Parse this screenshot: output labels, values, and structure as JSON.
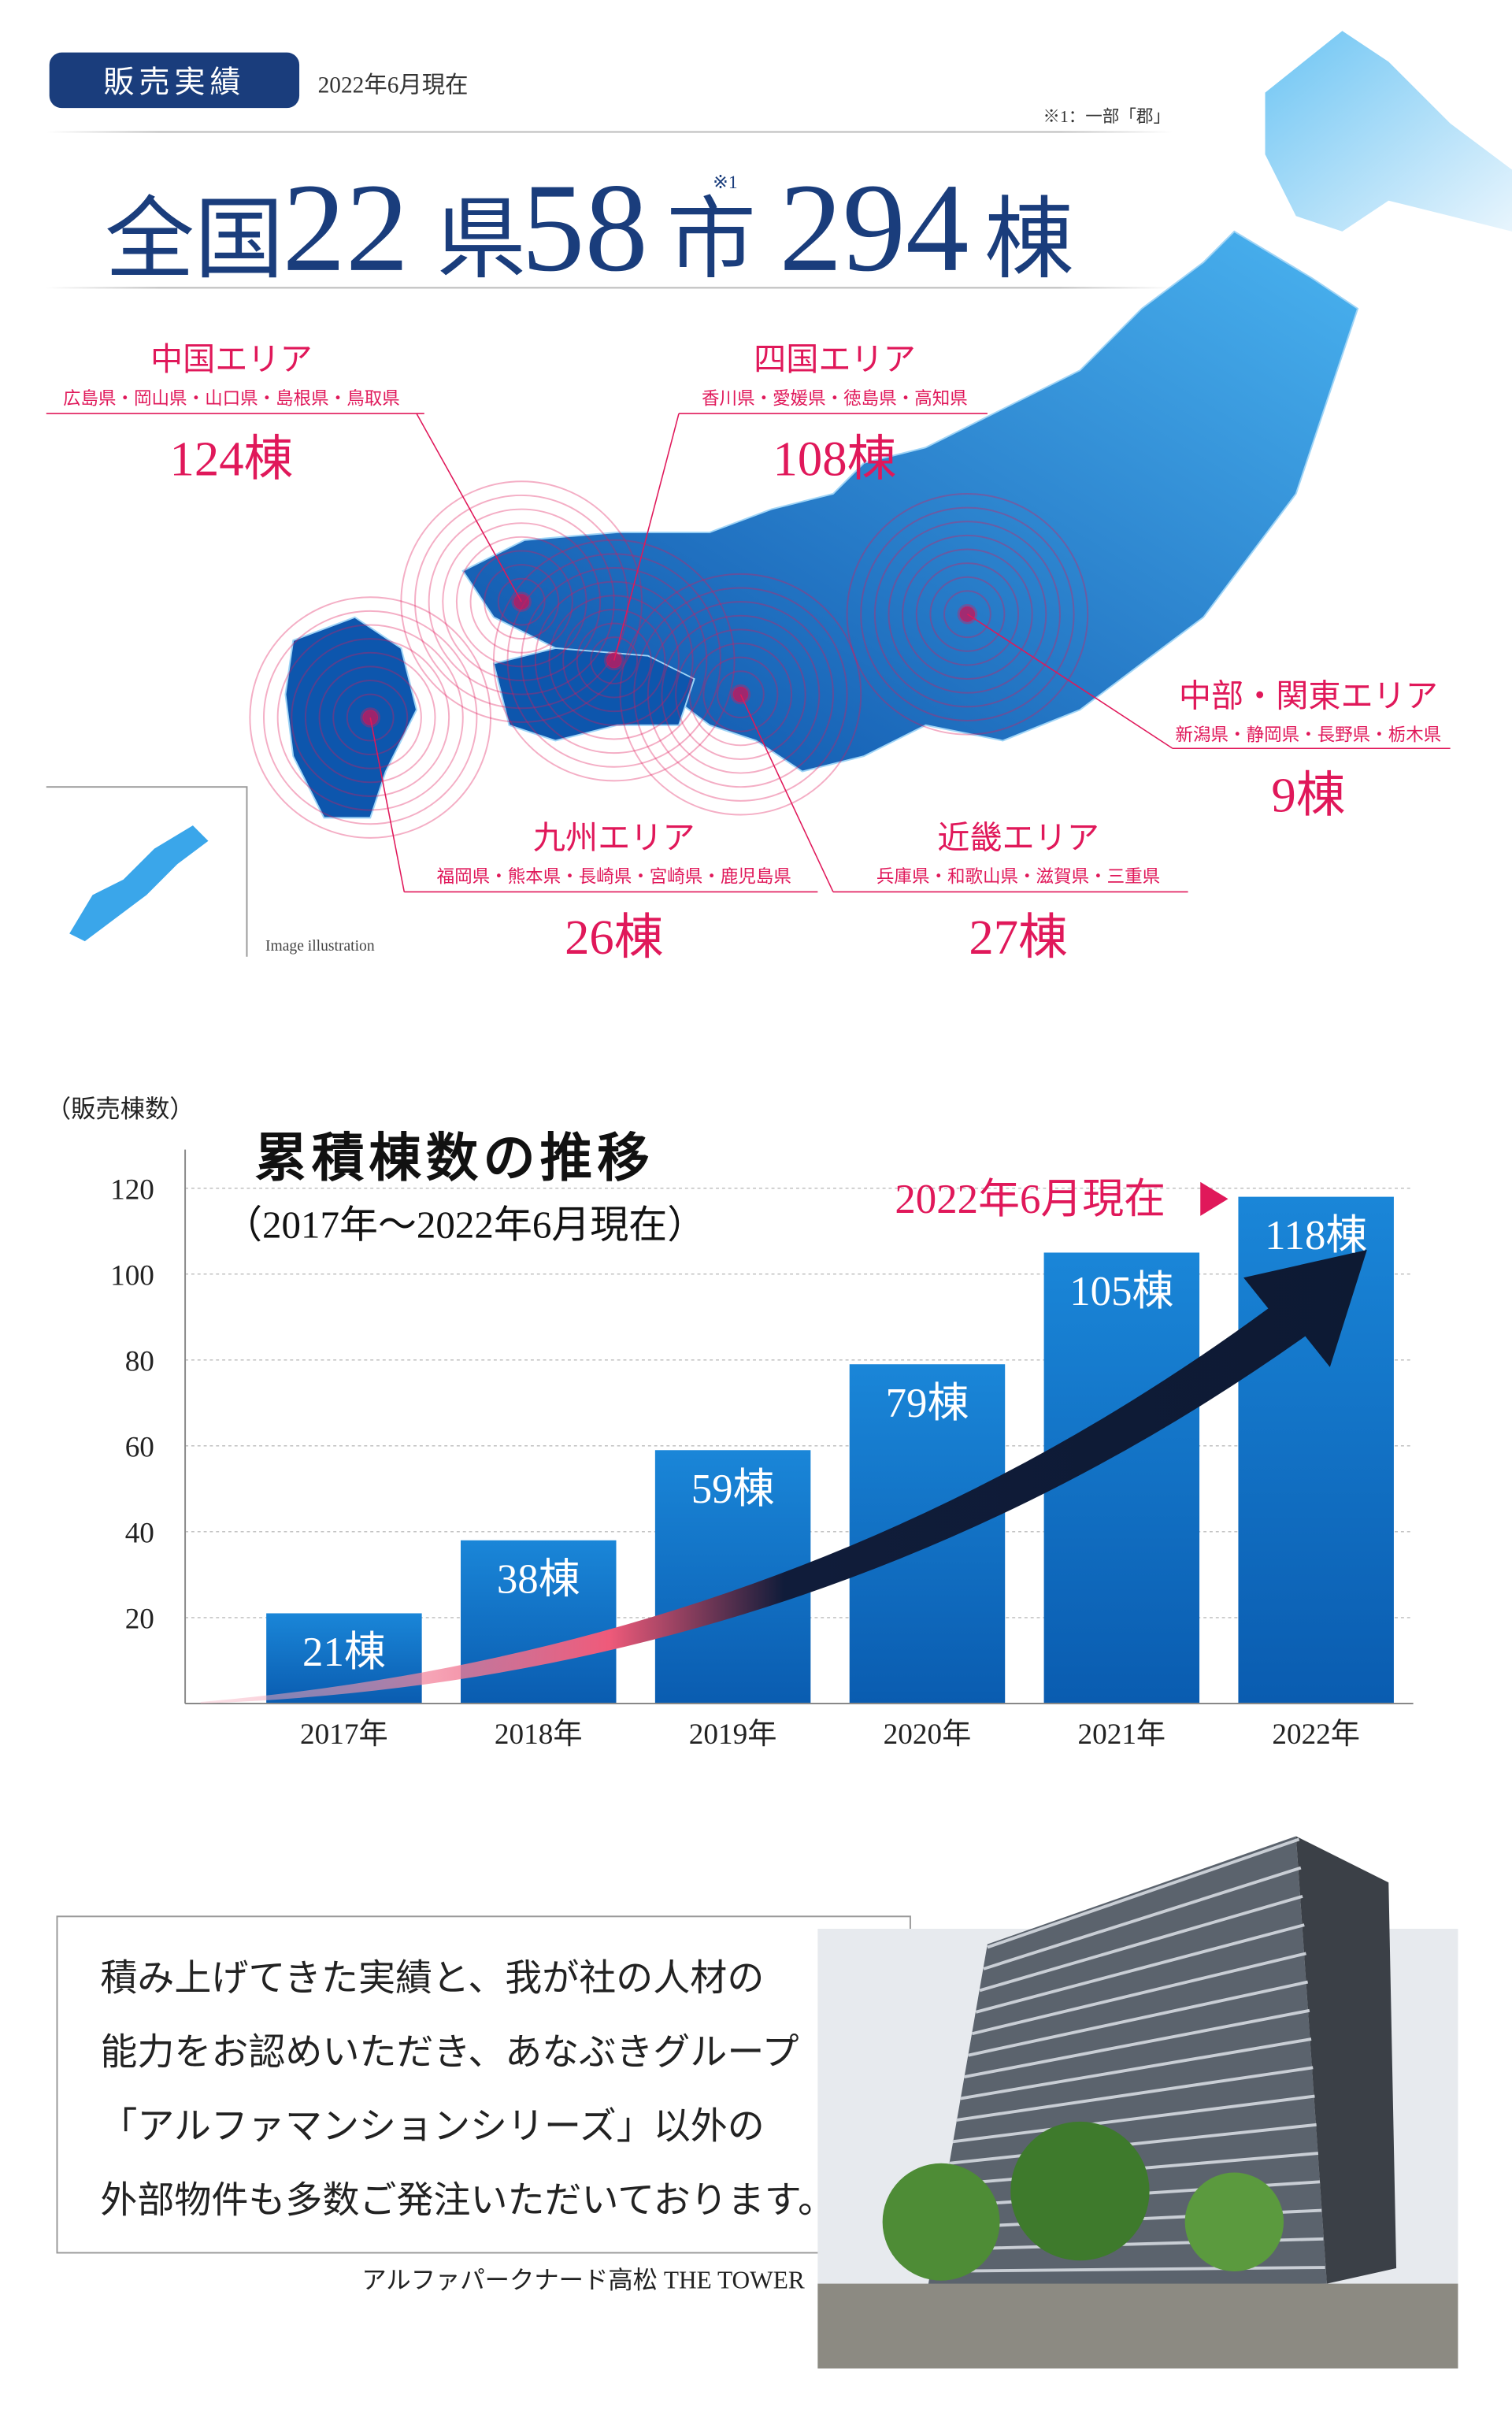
{
  "header": {
    "badge": "販売実績",
    "date": "2022年6月現在",
    "note": "※1：一部「郡」",
    "headline": [
      "全国",
      "22",
      "県",
      "58",
      "市",
      "※1",
      "294",
      "棟"
    ]
  },
  "map": {
    "caption": "Image illustration",
    "areas": [
      {
        "name": "中国エリア",
        "prefectures": "広島県・岡山県・山口県・島根県・鳥取県",
        "count": "124棟"
      },
      {
        "name": "四国エリア",
        "prefectures": "香川県・愛媛県・徳島県・高知県",
        "count": "108棟"
      },
      {
        "name": "中部・関東エリア",
        "prefectures": "新潟県・静岡県・長野県・栃木県",
        "count": "9棟"
      },
      {
        "name": "九州エリア",
        "prefectures": "福岡県・熊本県・長崎県・宮崎県・鹿児島県",
        "count": "26棟"
      },
      {
        "name": "近畿エリア",
        "prefectures": "兵庫県・和歌山県・滋賀県・三重県",
        "count": "27棟"
      }
    ]
  },
  "chart_data": {
    "type": "bar",
    "title": "累積棟数の推移",
    "subtitle": "（2017年～2022年6月現在）",
    "y_label": "（販売棟数）",
    "annotation": "2022年6月現在",
    "categories": [
      "2017年",
      "2018年",
      "2019年",
      "2020年",
      "2021年",
      "2022年"
    ],
    "values": [
      21,
      38,
      59,
      79,
      105,
      118
    ],
    "value_labels": [
      "21棟",
      "38棟",
      "59棟",
      "79棟",
      "105棟",
      "118棟"
    ],
    "color": "#1478cc",
    "ylim": [
      0,
      129
    ],
    "yticks": [
      20,
      40,
      60,
      80,
      100,
      120
    ],
    "grid": true
  },
  "message": {
    "lines": [
      "積み上げてきた実績と、我が社の人材の",
      "能力をお認めいただき、あなぶきグループ",
      "「アルファマンションシリーズ」以外の",
      "外部物件も多数ご発注いただいております。"
    ],
    "caption": "アルファパークナード高松 THE TOWER"
  }
}
